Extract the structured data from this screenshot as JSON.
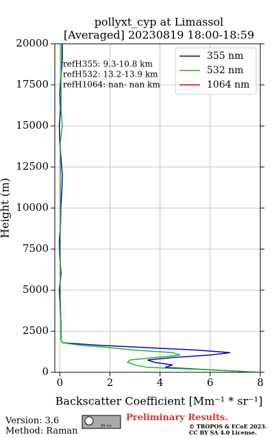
{
  "chart_data": {
    "type": "line",
    "title": "pollyxt_cyp at Limassol",
    "subtitle": "[Averaged] 20230819 18:00-18:59",
    "x_label": "Backscatter Coefficient [Mm⁻¹ * sr⁻¹]",
    "y_label": "Height (m)",
    "heights": [
      0,
      150,
      300,
      450,
      600,
      750,
      900,
      1050,
      1200,
      1350,
      1500,
      1650,
      1800,
      2000,
      3000,
      4000,
      5000,
      6000,
      7000,
      8000,
      9000,
      10000,
      11000,
      12000,
      13000,
      14000,
      15000,
      16000,
      17000,
      18000,
      19000,
      20000
    ],
    "series": [
      {
        "name": "355 nm",
        "color": "#0000cc",
        "values": [
          8.0,
          6.0,
          4.2,
          4.5,
          3.8,
          3.5,
          4.5,
          6.0,
          6.8,
          5.5,
          3.5,
          1.5,
          0.1,
          0.05,
          0.05,
          0.02,
          -0.02,
          0.05,
          0.0,
          -0.02,
          0.03,
          0.04,
          0.08,
          0.1,
          0.05,
          0.0,
          -0.02,
          0.03,
          0.0,
          0.05,
          0.1,
          0.1
        ]
      },
      {
        "name": "532 nm",
        "color": "#1db51d",
        "values": [
          8.0,
          6.0,
          3.5,
          3.0,
          2.7,
          2.8,
          3.8,
          4.8,
          4.5,
          3.0,
          2.0,
          0.8,
          0.1,
          0.05,
          0.04,
          0.03,
          0.02,
          0.02,
          0.02,
          0.02,
          0.02,
          0.02,
          0.02,
          0.02,
          0.02,
          0.02,
          0.1,
          0.05,
          0.05,
          0.05,
          0.05,
          0.05
        ]
      },
      {
        "name": "1064 nm",
        "color": "#e00000",
        "values": [
          null,
          null,
          null,
          null,
          null,
          null,
          null,
          null,
          null,
          null,
          null,
          null,
          null,
          null,
          null,
          null,
          null,
          null,
          null,
          null,
          null,
          null,
          null,
          null,
          null,
          null,
          null,
          null,
          null,
          null,
          null,
          null
        ]
      }
    ],
    "xlim": [
      -0.2,
      8
    ],
    "xticks": [
      0,
      2,
      4,
      6,
      8
    ],
    "ylim": [
      0,
      20000
    ],
    "yticks": [
      0,
      2500,
      5000,
      7500,
      10000,
      12500,
      15000,
      17500,
      20000
    ],
    "grid": true,
    "legend": "upper-right",
    "annotations": [
      "refH355:  9.3-10.8 km",
      "refH532: 13.2-13.9 km",
      "refH1064:  nan- nan km"
    ]
  },
  "footer": {
    "version": "Version: 3.6",
    "method": "Method: Raman",
    "badge": "BY SA",
    "status": "Preliminary Results.",
    "copyright": "© TROPOS & ECoE 2023.",
    "license": "CC BY SA 4.0 License."
  }
}
